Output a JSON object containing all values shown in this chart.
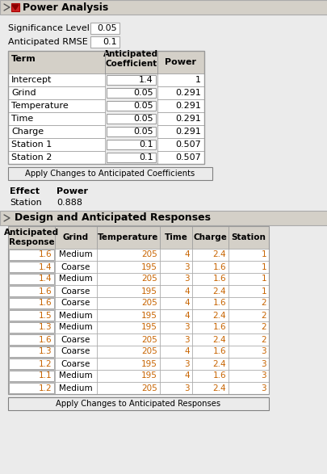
{
  "title": "Power Analysis",
  "significance_level": "0.05",
  "anticipated_rmse": "0.1",
  "coeff_table": {
    "rows": [
      [
        "Intercept",
        "1.4",
        "1"
      ],
      [
        "Grind",
        "0.05",
        "0.291"
      ],
      [
        "Temperature",
        "0.05",
        "0.291"
      ],
      [
        "Time",
        "0.05",
        "0.291"
      ],
      [
        "Charge",
        "0.05",
        "0.291"
      ],
      [
        "Station 1",
        "0.1",
        "0.507"
      ],
      [
        "Station 2",
        "0.1",
        "0.507"
      ]
    ]
  },
  "button1": "Apply Changes to Anticipated Coefficients",
  "effect_power_rows": [
    [
      "Station",
      "0.888"
    ]
  ],
  "section2_title": "Design and Anticipated Responses",
  "design_table": {
    "headers": [
      "Anticipated\nResponse",
      "Grind",
      "Temperature",
      "Time",
      "Charge",
      "Station"
    ],
    "rows": [
      [
        "1.6",
        "Medium",
        "205",
        "4",
        "2.4",
        "1"
      ],
      [
        "1.4",
        "Coarse",
        "195",
        "3",
        "1.6",
        "1"
      ],
      [
        "1.4",
        "Medium",
        "205",
        "3",
        "1.6",
        "1"
      ],
      [
        "1.6",
        "Coarse",
        "195",
        "4",
        "2.4",
        "1"
      ],
      [
        "1.6",
        "Coarse",
        "205",
        "4",
        "1.6",
        "2"
      ],
      [
        "1.5",
        "Medium",
        "195",
        "4",
        "2.4",
        "2"
      ],
      [
        "1.3",
        "Medium",
        "195",
        "3",
        "1.6",
        "2"
      ],
      [
        "1.6",
        "Coarse",
        "205",
        "3",
        "2.4",
        "2"
      ],
      [
        "1.3",
        "Coarse",
        "205",
        "4",
        "1.6",
        "3"
      ],
      [
        "1.2",
        "Coarse",
        "195",
        "3",
        "2.4",
        "3"
      ],
      [
        "1.1",
        "Medium",
        "195",
        "4",
        "1.6",
        "3"
      ],
      [
        "1.2",
        "Medium",
        "205",
        "3",
        "2.4",
        "3"
      ]
    ]
  },
  "button2": "Apply Changes to Anticipated Responses",
  "bg_color": "#ebebeb",
  "header_bg": "#d4d0c8",
  "cell_bg": "#ffffff",
  "section_header_bg": "#d4d0c8",
  "orange_color": "#c86400",
  "black_color": "#000000",
  "border_color": "#999999",
  "dark_border": "#808080"
}
